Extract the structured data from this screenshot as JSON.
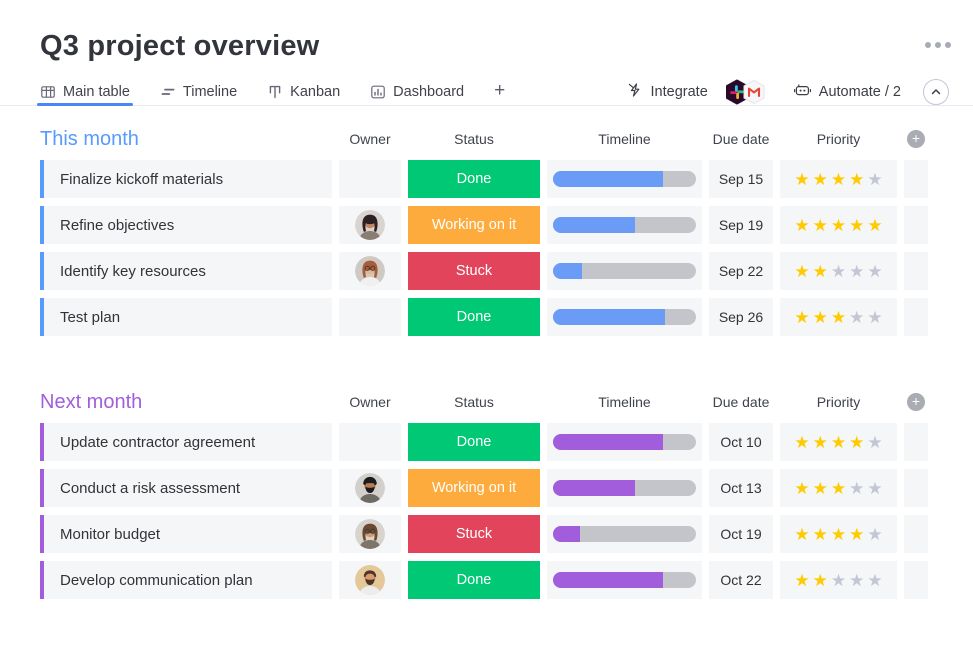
{
  "window": {
    "title": "Q3 project overview"
  },
  "icons": {
    "star_char": "★"
  },
  "tabs": {
    "items": [
      {
        "label": "Main table",
        "icon": "table-icon",
        "active": true
      },
      {
        "label": "Timeline",
        "icon": "timeline-icon",
        "active": false
      },
      {
        "label": "Kanban",
        "icon": "kanban-icon",
        "active": false
      },
      {
        "label": "Dashboard",
        "icon": "dashboard-icon",
        "active": false
      }
    ],
    "add_label": "+"
  },
  "toolbar": {
    "integrate": {
      "label": "Integrate",
      "badges": [
        "slack",
        "gmail"
      ]
    },
    "automate": {
      "label": "Automate / 2"
    }
  },
  "columns": {
    "owner": "Owner",
    "status": "Status",
    "timeline": "Timeline",
    "due_date": "Due date",
    "priority": "Priority"
  },
  "status_colors": {
    "Done": "#00C875",
    "Working on it": "#FDAB3D",
    "Stuck": "#E2445C"
  },
  "priority_max": 5,
  "colors": {
    "star_on": "#FFCB00",
    "star_off": "#C3C6D4",
    "row_bg": "#F5F6F8",
    "timeline_track": "#C4C5CA",
    "tab_active_underline": "#4A86F7"
  },
  "groups": [
    {
      "name": "This month",
      "color": "#579BFC",
      "timeline_fill": "#699BF7",
      "rows": [
        {
          "task": "Finalize kickoff materials",
          "owner": "",
          "status": "Done",
          "timeline_pct": 77,
          "due": "Sep 15",
          "priority": 4
        },
        {
          "task": "Refine objectives",
          "owner": "woman-dark-hair",
          "status": "Working on it",
          "timeline_pct": 57,
          "due": "Sep 19",
          "priority": 5
        },
        {
          "task": "Identify key resources",
          "owner": "woman-auburn-hair",
          "status": "Stuck",
          "timeline_pct": 20,
          "due": "Sep 22",
          "priority": 2
        },
        {
          "task": "Test plan",
          "owner": "",
          "status": "Done",
          "timeline_pct": 78,
          "due": "Sep 26",
          "priority": 3
        }
      ]
    },
    {
      "name": "Next month",
      "color": "#A25DDC",
      "timeline_fill": "#A25DDC",
      "rows": [
        {
          "task": "Update contractor agreement",
          "owner": "",
          "status": "Done",
          "timeline_pct": 77,
          "due": "Oct 10",
          "priority": 4
        },
        {
          "task": "Conduct a risk assessment",
          "owner": "man-turban",
          "status": "Working on it",
          "timeline_pct": 57,
          "due": "Oct 13",
          "priority": 3
        },
        {
          "task": "Monitor budget",
          "owner": "woman-glasses",
          "status": "Stuck",
          "timeline_pct": 19,
          "due": "Oct 19",
          "priority": 4
        },
        {
          "task": "Develop communication plan",
          "owner": "man-beard",
          "status": "Done",
          "timeline_pct": 77,
          "due": "Oct 22",
          "priority": 2
        }
      ]
    }
  ]
}
